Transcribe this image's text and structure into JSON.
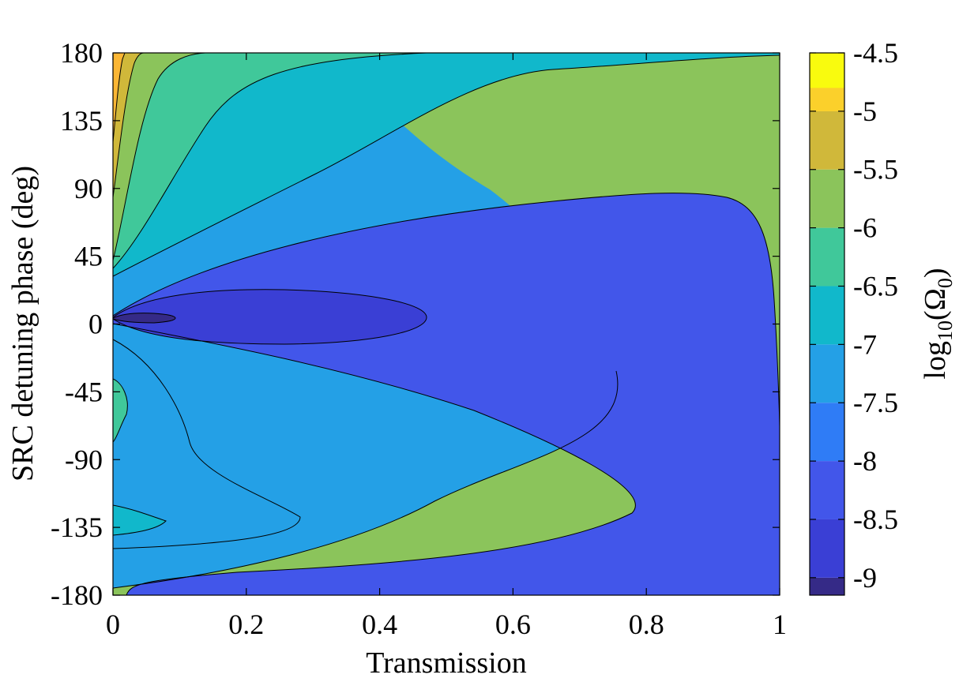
{
  "chart_data": {
    "type": "heatmap",
    "subtype": "filled-contour",
    "title": "",
    "xlabel": "Transmission",
    "ylabel": "SRC detuning phase (deg)",
    "xlim": [
      0,
      1
    ],
    "ylim": [
      -180,
      180
    ],
    "x_ticks": [
      0,
      0.2,
      0.4,
      0.6,
      0.8,
      1
    ],
    "x_tick_labels": [
      "0",
      "0.2",
      "0.4",
      "0.6",
      "0.8",
      "1"
    ],
    "y_ticks": [
      180,
      135,
      90,
      45,
      0,
      -45,
      -90,
      -135,
      -180
    ],
    "y_tick_labels": [
      "180",
      "135",
      "90",
      "45",
      "0",
      "-45",
      "-90",
      "-135",
      "-180"
    ],
    "grid": false,
    "colormap": "parula",
    "colorbar": {
      "label_base": "log",
      "label_sub1": "10",
      "label_paren_open": "(Ω",
      "label_sub2": "0",
      "label_paren_close": ")",
      "range": [
        -9.15,
        -4.5
      ],
      "ticks": [
        -4.5,
        -5,
        -5.5,
        -6,
        -6.5,
        -7,
        -7.5,
        -8,
        -8.5,
        -9
      ],
      "tick_labels": [
        "-4.5",
        "-5",
        "-5.5",
        "-6",
        "-6.5",
        "-7",
        "-7.5",
        "-8",
        "-8.5",
        "-9"
      ],
      "placement": "right"
    },
    "contour_levels": [
      -9.25,
      -9.0,
      -8.5,
      -8.0,
      -7.5,
      -7.0,
      -6.5,
      -6.0,
      -5.5,
      -5.0
    ],
    "level_colors": [
      "#352a87",
      "#3a3fd5",
      "#4256ea",
      "#2f7cf6",
      "#24a0e6",
      "#11b8cb",
      "#40c89a",
      "#8bc45b",
      "#d0b83a",
      "#fbb634"
    ],
    "regions": [
      {
        "level": -9.25,
        "approx_extent": {
          "x": [
            0.0,
            0.09
          ],
          "y": [
            0,
            10
          ]
        }
      },
      {
        "level": -9.0,
        "approx_extent": {
          "x": [
            0.0,
            0.47
          ],
          "y": [
            -15,
            25
          ]
        }
      },
      {
        "level": -8.5,
        "approx_extent": {
          "x": [
            0.0,
            1.0
          ],
          "y": [
            -180,
            85
          ]
        }
      },
      {
        "level": -8.0,
        "approx_extent": {
          "x": [
            0.0,
            1.0
          ],
          "y": [
            -180,
            180
          ]
        }
      },
      {
        "level": -7.5,
        "approx_extent": {
          "x": [
            0.0,
            0.72
          ],
          "y": [
            -170,
            180
          ]
        }
      },
      {
        "level": -7.0,
        "approx_extent": {
          "x": [
            0.0,
            0.47
          ],
          "y": [
            -145,
            180
          ]
        }
      },
      {
        "level": -6.5,
        "approx_extent": {
          "x": [
            0.0,
            0.08
          ],
          "y": [
            -140,
            180
          ]
        }
      },
      {
        "level": -6.0,
        "approx_extent": {
          "x": [
            0.0,
            0.04
          ],
          "y": [
            95,
            180
          ]
        }
      },
      {
        "level": -5.5,
        "approx_extent": {
          "x": [
            0.0,
            0.02
          ],
          "y": [
            130,
            180
          ]
        }
      },
      {
        "level": -5.0,
        "approx_extent": {
          "x": [
            0.0,
            0.01
          ],
          "y": [
            165,
            180
          ]
        }
      }
    ]
  }
}
